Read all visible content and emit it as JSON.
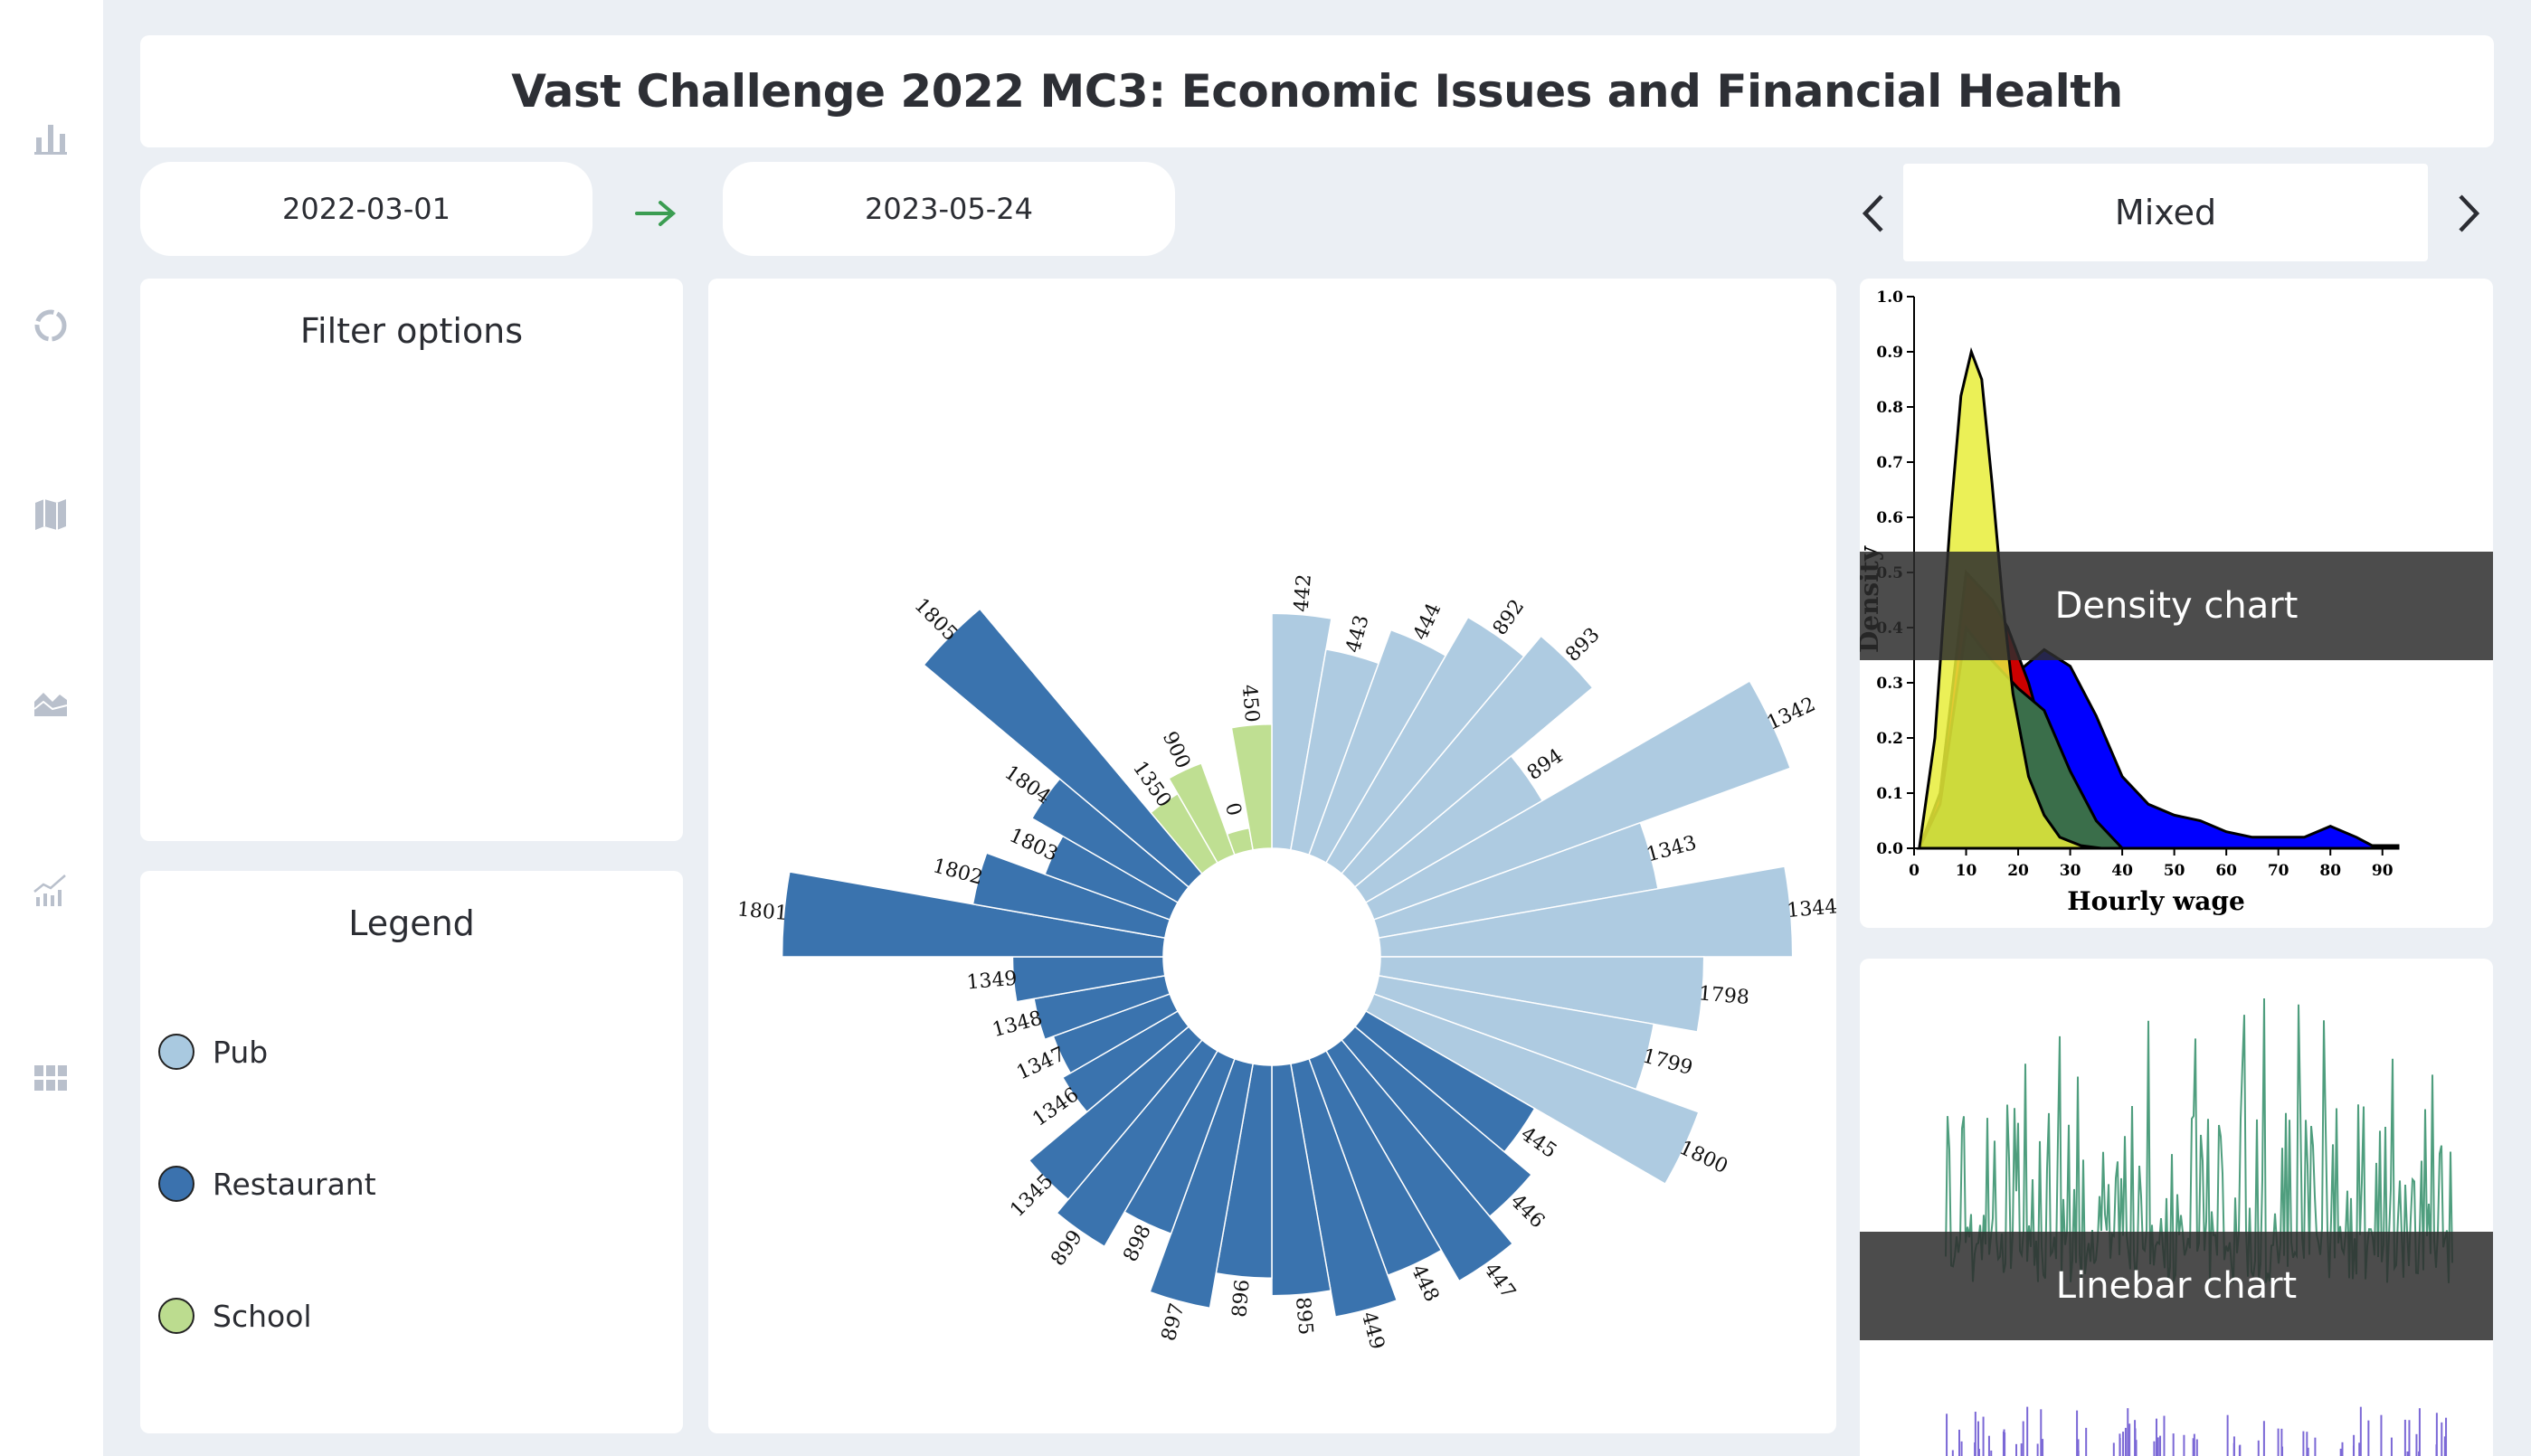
{
  "title": "Vast Challenge 2022 MC3: Economic Issues and Financial Health",
  "dates": {
    "start": "2022-03-01",
    "end": "2023-05-24"
  },
  "chart_switcher": {
    "label": "Mixed"
  },
  "filter_panel": {
    "heading": "Filter options"
  },
  "legend": {
    "heading": "Legend",
    "items": [
      {
        "label": "Pub",
        "color": "#a9c9e0"
      },
      {
        "label": "Restaurant",
        "color": "#3b72ae"
      },
      {
        "label": "School",
        "color": "#bcdc8f"
      }
    ]
  },
  "sidebar": {
    "icons": [
      "bar-chart-icon",
      "donut-icon",
      "map-icon",
      "area-chart-icon",
      "line-bar-icon",
      "grid-icon"
    ]
  },
  "colors": {
    "pub": "#aecbe1",
    "restaurant": "#3a73ae",
    "school": "#bfdf92",
    "accent_green": "#3b9d52"
  },
  "radial_chart": {
    "type": "bar",
    "bars": [
      {
        "label": "442",
        "category": "Pub",
        "value": 0.53
      },
      {
        "label": "443",
        "category": "Pub",
        "value": 0.46
      },
      {
        "label": "444",
        "category": "Pub",
        "value": 0.54
      },
      {
        "label": "892",
        "category": "Pub",
        "value": 0.64
      },
      {
        "label": "893",
        "category": "Pub",
        "value": 0.7
      },
      {
        "label": "894",
        "category": "Pub",
        "value": 0.46
      },
      {
        "label": "1342",
        "category": "Pub",
        "value": 1.0
      },
      {
        "label": "1343",
        "category": "Pub",
        "value": 0.64
      },
      {
        "label": "1344",
        "category": "Pub",
        "value": 0.93
      },
      {
        "label": "1798",
        "category": "Pub",
        "value": 0.73
      },
      {
        "label": "1799",
        "category": "Pub",
        "value": 0.63
      },
      {
        "label": "1800",
        "category": "Pub",
        "value": 0.78
      },
      {
        "label": "445",
        "category": "Restaurant",
        "value": 0.44
      },
      {
        "label": "446",
        "category": "Restaurant",
        "value": 0.52
      },
      {
        "label": "447",
        "category": "Restaurant",
        "value": 0.6
      },
      {
        "label": "448",
        "category": "Restaurant",
        "value": 0.52
      },
      {
        "label": "449",
        "category": "Restaurant",
        "value": 0.58
      },
      {
        "label": "895",
        "category": "Restaurant",
        "value": 0.52
      },
      {
        "label": "896",
        "category": "Restaurant",
        "value": 0.48
      },
      {
        "label": "897",
        "category": "Restaurant",
        "value": 0.56
      },
      {
        "label": "898",
        "category": "Restaurant",
        "value": 0.42
      },
      {
        "label": "899",
        "category": "Restaurant",
        "value": 0.51
      },
      {
        "label": "1345",
        "category": "Restaurant",
        "value": 0.47
      },
      {
        "label": "1346",
        "category": "Restaurant",
        "value": 0.3
      },
      {
        "label": "1347",
        "category": "Restaurant",
        "value": 0.28
      },
      {
        "label": "1348",
        "category": "Restaurant",
        "value": 0.3
      },
      {
        "label": "1349",
        "category": "Restaurant",
        "value": 0.34
      },
      {
        "label": "1801",
        "category": "Restaurant",
        "value": 0.86
      },
      {
        "label": "1802",
        "category": "Restaurant",
        "value": 0.44
      },
      {
        "label": "1803",
        "category": "Restaurant",
        "value": 0.3
      },
      {
        "label": "1804",
        "category": "Restaurant",
        "value": 0.38
      },
      {
        "label": "1805",
        "category": "Restaurant",
        "value": 0.78
      },
      {
        "label": "1350",
        "category": "School",
        "value": 0.18
      },
      {
        "label": "900",
        "category": "School",
        "value": 0.22
      },
      {
        "label": "0",
        "category": "School",
        "value": 0.05
      },
      {
        "label": "450",
        "category": "School",
        "value": 0.28
      }
    ]
  },
  "chart_data": [
    {
      "type": "area",
      "title": "Density chart",
      "xlabel": "Hourly wage",
      "ylabel": "Density",
      "xlim": [
        0,
        93
      ],
      "ylim": [
        0,
        1.0
      ],
      "x_ticks": [
        "0",
        "10",
        "20",
        "30",
        "40",
        "50",
        "60",
        "70",
        "80",
        "90"
      ],
      "y_ticks": [
        "0.0",
        "0.1",
        "0.2",
        "0.3",
        "0.4",
        "0.5",
        "0.6",
        "0.7",
        "0.8",
        "0.9",
        "1.0"
      ],
      "series": [
        {
          "color": "#0000ff",
          "x": [
            1,
            5,
            10,
            15,
            20,
            25,
            30,
            35,
            40,
            45,
            50,
            55,
            60,
            65,
            70,
            75,
            80,
            85,
            88,
            93
          ],
          "values": [
            0,
            0.04,
            0.12,
            0.25,
            0.32,
            0.36,
            0.33,
            0.24,
            0.13,
            0.08,
            0.06,
            0.05,
            0.03,
            0.02,
            0.02,
            0.02,
            0.04,
            0.02,
            0.005,
            0.005
          ]
        },
        {
          "color": "#cc0000",
          "x": [
            1,
            5,
            10,
            15,
            18,
            22,
            25,
            28,
            32,
            36,
            40
          ],
          "values": [
            0,
            0.1,
            0.5,
            0.45,
            0.4,
            0.3,
            0.2,
            0.1,
            0.03,
            0.01,
            0
          ]
        },
        {
          "color": "#3a6e4a",
          "x": [
            1,
            5,
            10,
            15,
            20,
            25,
            30,
            35,
            40
          ],
          "values": [
            0,
            0.08,
            0.4,
            0.34,
            0.29,
            0.25,
            0.14,
            0.05,
            0
          ]
        },
        {
          "color": "#e8ed3a",
          "x": [
            1,
            4,
            7,
            9,
            11,
            13,
            15,
            17,
            19,
            22,
            25,
            28,
            32,
            36
          ],
          "values": [
            0,
            0.2,
            0.6,
            0.82,
            0.9,
            0.85,
            0.66,
            0.45,
            0.28,
            0.13,
            0.06,
            0.02,
            0.005,
            0
          ]
        }
      ]
    },
    {
      "type": "bar",
      "title": "Linebar chart",
      "series": []
    }
  ]
}
